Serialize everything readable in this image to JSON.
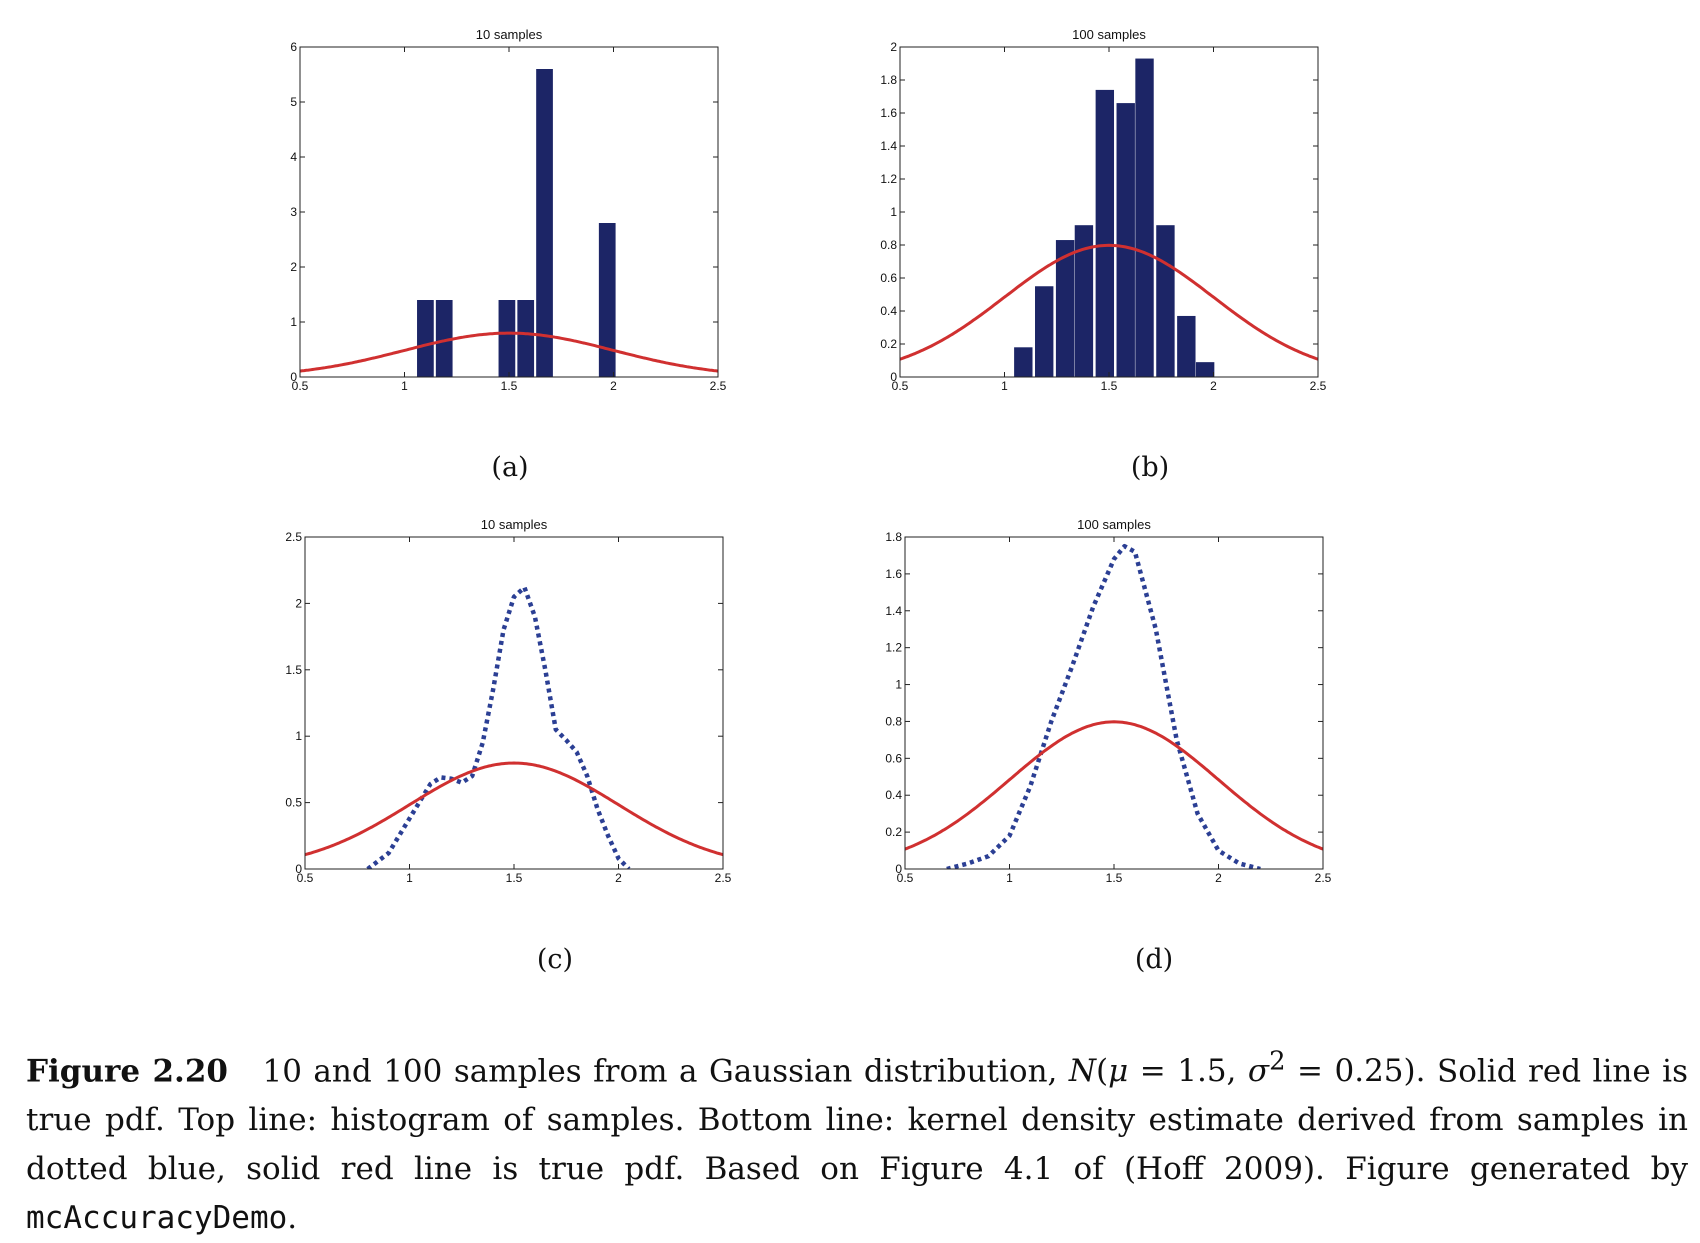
{
  "figure": {
    "label": "Figure 2.20",
    "caption_part1": "10 and 100 samples from a Gaussian distribution,",
    "math_N": "N",
    "math_mu": "μ",
    "math_eq1": " = 1.5, ",
    "math_sigma": "σ",
    "math_sup": "2",
    "math_eq2": " = 0.25).",
    "caption_part2": " Solid red line is true pdf. Top line: histogram of samples. Bottom line: kernel density estimate derived from samples in dotted blue, solid red line is true pdf. Based on Figure 4.1 of (Hoff 2009). Figure generated by ",
    "code": "mcAccuracyDemo",
    "caption_end": "."
  },
  "colors": {
    "bar": "#1c2566",
    "true_pdf": "#d03030",
    "kde": "#2b3f94"
  },
  "panels": [
    {
      "id": "a",
      "sublabel": "(a)",
      "title": "10 samples",
      "xticks": [
        "0.5",
        "1",
        "1.5",
        "2",
        "2.5"
      ],
      "yticks": [
        "0",
        "1",
        "2",
        "3",
        "4",
        "5",
        "6"
      ]
    },
    {
      "id": "b",
      "sublabel": "(b)",
      "title": "100 samples",
      "xticks": [
        "0.5",
        "1",
        "1.5",
        "2",
        "2.5"
      ],
      "yticks": [
        "0",
        "0.2",
        "0.4",
        "0.6",
        "0.8",
        "1",
        "1.2",
        "1.4",
        "1.6",
        "1.8",
        "2"
      ]
    },
    {
      "id": "c",
      "sublabel": "(c)",
      "title": "10 samples",
      "xticks": [
        "0.5",
        "1",
        "1.5",
        "2",
        "2.5"
      ],
      "yticks": [
        "0",
        "0.5",
        "1",
        "1.5",
        "2",
        "2.5"
      ]
    },
    {
      "id": "d",
      "sublabel": "(d)",
      "title": "100 samples",
      "xticks": [
        "0.5",
        "1",
        "1.5",
        "2",
        "2.5"
      ],
      "yticks": [
        "0",
        "0.2",
        "0.4",
        "0.6",
        "0.8",
        "1",
        "1.2",
        "1.4",
        "1.6",
        "1.8"
      ]
    }
  ],
  "chart_data": [
    {
      "type": "bar",
      "title": "10 samples",
      "xlim": [
        0.5,
        2.5
      ],
      "ylim": [
        0,
        6
      ],
      "bar_width": 0.08,
      "bars": [
        {
          "x": 1.1,
          "value": 1.4
        },
        {
          "x": 1.19,
          "value": 1.4
        },
        {
          "x": 1.49,
          "value": 1.4
        },
        {
          "x": 1.58,
          "value": 1.4
        },
        {
          "x": 1.67,
          "value": 5.6
        },
        {
          "x": 1.97,
          "value": 2.8
        }
      ],
      "true_pdf": {
        "mu": 1.5,
        "variance": 0.25
      }
    },
    {
      "type": "bar",
      "title": "100 samples",
      "xlim": [
        0.5,
        2.5
      ],
      "ylim": [
        0,
        2
      ],
      "bar_width": 0.088,
      "bars": [
        {
          "x": 1.09,
          "value": 0.18
        },
        {
          "x": 1.19,
          "value": 0.55
        },
        {
          "x": 1.29,
          "value": 0.83
        },
        {
          "x": 1.38,
          "value": 0.92
        },
        {
          "x": 1.48,
          "value": 1.74
        },
        {
          "x": 1.58,
          "value": 1.66
        },
        {
          "x": 1.67,
          "value": 1.93
        },
        {
          "x": 1.77,
          "value": 0.92
        },
        {
          "x": 1.87,
          "value": 0.37
        },
        {
          "x": 1.96,
          "value": 0.09
        }
      ],
      "true_pdf": {
        "mu": 1.5,
        "variance": 0.25
      }
    },
    {
      "type": "line",
      "title": "10 samples",
      "xlim": [
        0.5,
        2.5
      ],
      "ylim": [
        0,
        2.5
      ],
      "series": [
        {
          "name": "true pdf",
          "style": "solid",
          "mu": 1.5,
          "variance": 0.25
        },
        {
          "name": "kernel density estimate",
          "style": "dotted",
          "x": [
            0.8,
            0.9,
            1.0,
            1.1,
            1.15,
            1.2,
            1.25,
            1.3,
            1.35,
            1.4,
            1.45,
            1.5,
            1.55,
            1.6,
            1.65,
            1.7,
            1.75,
            1.8,
            1.85,
            1.9,
            1.95,
            2.0,
            2.05
          ],
          "y": [
            0.0,
            0.12,
            0.38,
            0.64,
            0.69,
            0.68,
            0.65,
            0.7,
            0.95,
            1.35,
            1.8,
            2.05,
            2.12,
            1.9,
            1.5,
            1.05,
            0.97,
            0.88,
            0.7,
            0.45,
            0.25,
            0.08,
            0.0
          ]
        }
      ]
    },
    {
      "type": "line",
      "title": "100 samples",
      "xlim": [
        0.5,
        2.5
      ],
      "ylim": [
        0,
        1.8
      ],
      "series": [
        {
          "name": "true pdf",
          "style": "solid",
          "mu": 1.5,
          "variance": 0.25
        },
        {
          "name": "kernel density estimate",
          "style": "dotted",
          "x": [
            0.7,
            0.8,
            0.9,
            1.0,
            1.1,
            1.2,
            1.3,
            1.4,
            1.5,
            1.55,
            1.6,
            1.7,
            1.8,
            1.9,
            2.0,
            2.1,
            2.2
          ],
          "y": [
            0.0,
            0.03,
            0.07,
            0.18,
            0.45,
            0.8,
            1.1,
            1.42,
            1.68,
            1.75,
            1.72,
            1.3,
            0.7,
            0.3,
            0.1,
            0.03,
            0.0
          ]
        }
      ]
    }
  ]
}
